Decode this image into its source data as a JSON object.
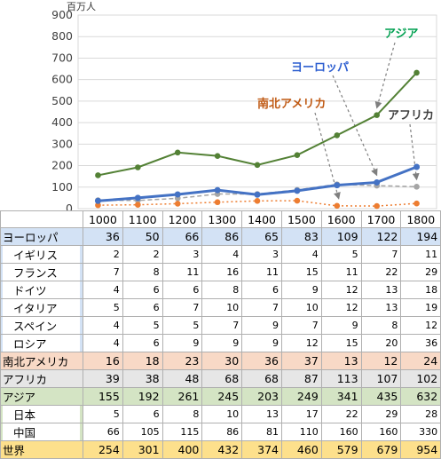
{
  "chart_data": {
    "type": "line",
    "ylabel": "百万人",
    "ylim": [
      0,
      900
    ],
    "yticks": [
      0,
      100,
      200,
      300,
      400,
      500,
      600,
      700,
      800,
      900
    ],
    "categories": [
      "1000",
      "1100",
      "1200",
      "1300",
      "1400",
      "1500",
      "1600",
      "1700",
      "1800"
    ],
    "grid": true,
    "series": [
      {
        "name": "アジア",
        "color": "#538135",
        "values": [
          155,
          192,
          261,
          245,
          203,
          249,
          341,
          435,
          632
        ]
      },
      {
        "name": "ヨーロッパ",
        "color": "#4472c4",
        "values": [
          36,
          50,
          66,
          86,
          65,
          83,
          109,
          122,
          194
        ]
      },
      {
        "name": "アフリカ",
        "color": "#a5a5a5",
        "values": [
          39,
          38,
          48,
          68,
          68,
          87,
          113,
          107,
          102
        ]
      },
      {
        "name": "南北アメリカ",
        "color": "#ed7d31",
        "values": [
          16,
          18,
          23,
          30,
          36,
          37,
          13,
          12,
          24
        ]
      }
    ],
    "annotations": [
      {
        "text": "アジア",
        "color": "#00a050"
      },
      {
        "text": "ヨーロッパ",
        "color": "#2e5fd0"
      },
      {
        "text": "南北アメリカ",
        "color": "#c05a14"
      },
      {
        "text": "アフリカ",
        "color": "#404040"
      }
    ]
  },
  "table": {
    "years": [
      "1000",
      "1100",
      "1200",
      "1300",
      "1400",
      "1500",
      "1600",
      "1700",
      "1800"
    ],
    "rows": [
      {
        "label": "ヨーロッパ",
        "kind": "europe",
        "values": [
          "36",
          "50",
          "66",
          "86",
          "65",
          "83",
          "109",
          "122",
          "194"
        ]
      },
      {
        "label": "イギリス",
        "kind": "europe-sub",
        "values": [
          "2",
          "2",
          "3",
          "4",
          "3",
          "4",
          "5",
          "7",
          "11"
        ]
      },
      {
        "label": "フランス",
        "kind": "europe-sub",
        "values": [
          "7",
          "8",
          "11",
          "16",
          "11",
          "15",
          "11",
          "22",
          "29"
        ]
      },
      {
        "label": "ドイツ",
        "kind": "europe-sub",
        "values": [
          "4",
          "6",
          "6",
          "8",
          "6",
          "9",
          "12",
          "13",
          "18"
        ]
      },
      {
        "label": "イタリア",
        "kind": "europe-sub",
        "values": [
          "5",
          "6",
          "7",
          "10",
          "7",
          "10",
          "12",
          "13",
          "19"
        ]
      },
      {
        "label": "スペイン",
        "kind": "europe-sub",
        "values": [
          "4",
          "5",
          "5",
          "7",
          "9",
          "7",
          "9",
          "8",
          "12"
        ]
      },
      {
        "label": "ロシア",
        "kind": "europe-sub",
        "values": [
          "4",
          "6",
          "9",
          "9",
          "9",
          "12",
          "15",
          "20",
          "36"
        ]
      },
      {
        "label": "南北アメリカ",
        "kind": "americas",
        "values": [
          "16",
          "18",
          "23",
          "30",
          "36",
          "37",
          "13",
          "12",
          "24"
        ]
      },
      {
        "label": "アフリカ",
        "kind": "africa",
        "values": [
          "39",
          "38",
          "48",
          "68",
          "68",
          "87",
          "113",
          "107",
          "102"
        ]
      },
      {
        "label": "アジア",
        "kind": "asia",
        "values": [
          "155",
          "192",
          "261",
          "245",
          "203",
          "249",
          "341",
          "435",
          "632"
        ]
      },
      {
        "label": "日本",
        "kind": "asia-sub",
        "values": [
          "5",
          "6",
          "8",
          "10",
          "13",
          "17",
          "22",
          "29",
          "28"
        ]
      },
      {
        "label": "中国",
        "kind": "asia-sub",
        "values": [
          "66",
          "105",
          "115",
          "86",
          "81",
          "110",
          "160",
          "160",
          "330"
        ]
      },
      {
        "label": "世界",
        "kind": "world",
        "values": [
          "254",
          "301",
          "400",
          "432",
          "374",
          "460",
          "579",
          "679",
          "954"
        ]
      }
    ]
  }
}
